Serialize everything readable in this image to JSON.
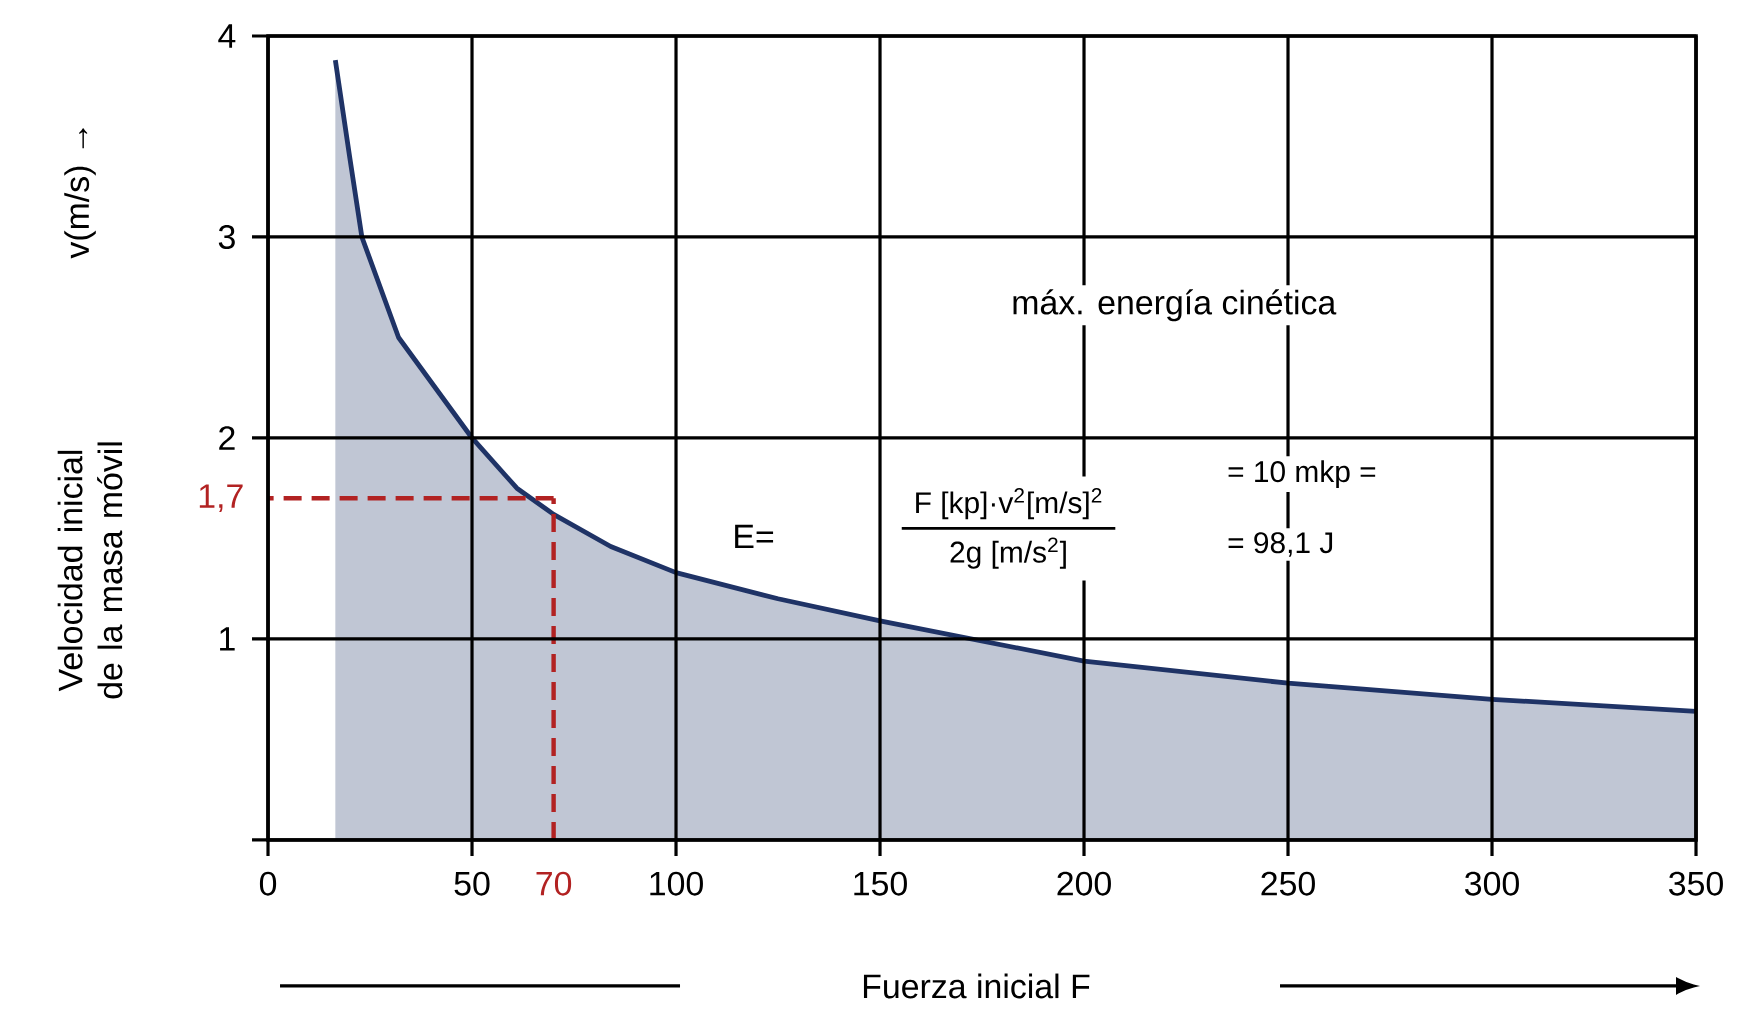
{
  "chart_data": {
    "type": "area",
    "x": [
      16.5,
      20,
      23,
      32,
      50,
      61,
      70,
      84,
      100,
      125,
      150,
      200,
      250,
      300,
      350
    ],
    "series": [
      {
        "color": "#1f3366",
        "values": [
          3.88,
          3.4,
          3.0,
          2.5,
          2.0,
          1.75,
          1.62,
          1.46,
          1.33,
          1.2,
          1.09,
          0.89,
          0.78,
          0.7,
          0.64
        ]
      }
    ],
    "xlabel": "Fuerza inicial F",
    "ylabel": "Velocidad inicial de la masa móvil",
    "xlim": [
      0,
      350
    ],
    "ylim": [
      0,
      4
    ],
    "xticks": [
      0,
      50,
      100,
      150,
      200,
      250,
      300,
      350
    ],
    "yticks": [
      {
        "value": 0,
        "label": null
      },
      1,
      2,
      3,
      4
    ],
    "grid": true,
    "ref_lines": [
      {
        "axis": "x",
        "value": 70,
        "label": "70",
        "color": "#b22222",
        "line_style": "dashed"
      },
      {
        "axis": "y",
        "value": 1.7,
        "label": "1,7",
        "color": "#b22222",
        "line_style": "dashed"
      }
    ],
    "annotations": [
      "v(m/s) →",
      "máx. energía cinética",
      "E=",
      "F [kp]·v$^{2}$[m/s]$^{2}$",
      "2g [m/s$^{2}$]",
      "= 10 mkp =",
      "= 98,1 J"
    ]
  }
}
